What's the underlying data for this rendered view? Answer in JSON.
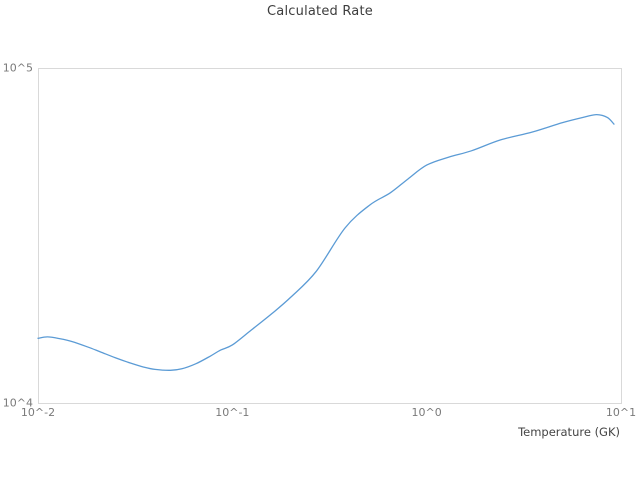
{
  "chart_data": {
    "type": "line",
    "title": "Calculated Rate",
    "xlabel": "Temperature (GK)",
    "ylabel": "",
    "x_scale": "log",
    "y_scale": "log",
    "xlim": [
      0.01,
      10
    ],
    "ylim": [
      10000,
      100000
    ],
    "grid": false,
    "legend": "none",
    "x_ticks": [
      {
        "value": 0.01,
        "label": "10^-2"
      },
      {
        "value": 0.1,
        "label": "10^-1"
      },
      {
        "value": 1,
        "label": "10^0"
      },
      {
        "value": 10,
        "label": "10^1"
      }
    ],
    "y_ticks": [
      {
        "value": 10000,
        "label": "10^4"
      },
      {
        "value": 100000,
        "label": "10^5"
      }
    ],
    "series": [
      {
        "name": "calculated-rate",
        "color": "#5b9bd5",
        "x": [
          0.01,
          0.0112,
          0.013,
          0.015,
          0.018,
          0.021,
          0.025,
          0.03,
          0.035,
          0.04,
          0.048,
          0.055,
          0.065,
          0.077,
          0.087,
          0.1,
          0.125,
          0.16,
          0.2,
          0.27,
          0.38,
          0.51,
          0.65,
          0.8,
          1.0,
          1.3,
          1.7,
          2.4,
          3.5,
          5.0,
          6.5,
          7.5,
          8.5,
          9.2
        ],
        "y": [
          15600,
          15750,
          15550,
          15250,
          14700,
          14200,
          13650,
          13150,
          12800,
          12600,
          12520,
          12650,
          13100,
          13800,
          14390,
          14900,
          16500,
          18500,
          20700,
          24700,
          33300,
          39000,
          42400,
          46600,
          51300,
          54200,
          56600,
          61000,
          64400,
          68700,
          71400,
          72600,
          71200,
          68000
        ]
      }
    ]
  },
  "colors": {
    "frame": "#d9d9d9",
    "line": "#5b9bd5",
    "tick_text": "#7a7a7a",
    "title_text": "#3d3d3d"
  }
}
